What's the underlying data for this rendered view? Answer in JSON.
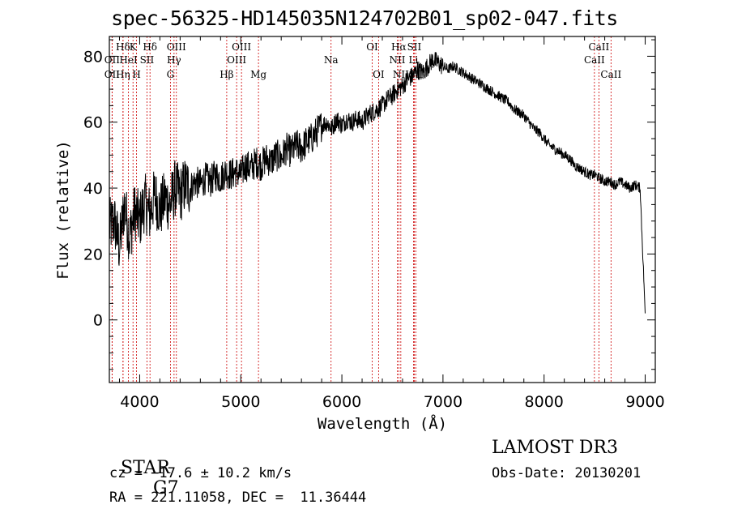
{
  "title": "spec-56325-HD145035N124702B01_sp02-047.fits",
  "colors": {
    "spectrum": "#000000",
    "marker": "#cc0000",
    "axis": "#000000"
  },
  "chart_data": {
    "type": "line",
    "title": "spec-56325-HD145035N124702B01_sp02-047.fits",
    "xlabel": "Wavelength (Å)",
    "ylabel": "Flux (relative)",
    "xlim": [
      3700,
      9100
    ],
    "ylim": [
      -19,
      86
    ],
    "xticks": [
      4000,
      5000,
      6000,
      7000,
      8000,
      9000
    ],
    "yticks": [
      0,
      20,
      40,
      60,
      80
    ],
    "series": [
      {
        "name": "flux",
        "x": [
          3700,
          3750,
          3800,
          3850,
          3900,
          3950,
          4000,
          4050,
          4100,
          4150,
          4200,
          4250,
          4300,
          4350,
          4400,
          4450,
          4500,
          4550,
          4600,
          4650,
          4700,
          4750,
          4800,
          4850,
          4900,
          4950,
          5000,
          5050,
          5100,
          5150,
          5200,
          5250,
          5300,
          5350,
          5400,
          5450,
          5500,
          5550,
          5600,
          5650,
          5700,
          5750,
          5800,
          5850,
          5900,
          5950,
          6000,
          6050,
          6100,
          6150,
          6200,
          6250,
          6300,
          6350,
          6400,
          6450,
          6500,
          6550,
          6600,
          6650,
          6700,
          6750,
          6800,
          6850,
          6900,
          6950,
          7000,
          7050,
          7100,
          7150,
          7200,
          7250,
          7300,
          7350,
          7400,
          7450,
          7500,
          7550,
          7600,
          7650,
          7700,
          7750,
          7800,
          7850,
          7900,
          7950,
          8000,
          8050,
          8100,
          8150,
          8200,
          8250,
          8300,
          8350,
          8400,
          8450,
          8500,
          8550,
          8600,
          8650,
          8700,
          8750,
          8800,
          8850,
          8900,
          8950,
          9000
        ],
        "values": [
          28,
          30,
          22,
          35,
          25,
          33,
          30,
          36,
          32,
          38,
          33,
          37,
          35,
          40,
          38,
          41,
          40,
          42,
          41,
          43,
          42,
          44,
          43,
          45,
          44,
          45,
          44,
          47,
          46,
          48,
          47,
          49,
          48,
          50,
          49,
          52,
          51,
          53,
          52,
          54,
          55,
          57,
          59,
          60,
          58,
          61,
          59,
          61,
          60,
          61,
          60,
          62,
          63,
          64,
          65,
          67,
          68,
          70,
          71,
          73,
          74,
          76,
          75,
          77,
          79,
          78,
          77,
          76,
          77,
          76,
          75,
          74,
          73,
          72,
          71,
          70,
          69,
          68,
          67,
          66,
          64,
          63,
          62,
          60,
          58,
          57,
          55,
          53,
          52,
          51,
          50,
          49,
          47,
          46,
          45,
          44,
          44,
          43,
          42,
          42,
          41,
          42,
          41,
          40,
          41,
          40,
          2
        ]
      }
    ],
    "annotations": [
      {
        "label": "Hδ",
        "x": 3835,
        "row": 1
      },
      {
        "label": "OII",
        "x": 3727,
        "row": 2
      },
      {
        "label": "OII",
        "x": 3727,
        "row": 3
      },
      {
        "label": "K",
        "x": 3934,
        "row": 1
      },
      {
        "label": "HeI",
        "x": 3889,
        "row": 2
      },
      {
        "label": "Hη",
        "x": 3835,
        "row": 3
      },
      {
        "label": "H",
        "x": 3969,
        "row": 3
      },
      {
        "label": "Hδ",
        "x": 4102,
        "row": 1
      },
      {
        "label": "SII",
        "x": 4072,
        "row": 2
      },
      {
        "label": "OIII",
        "x": 4363,
        "row": 1
      },
      {
        "label": "Hγ",
        "x": 4340,
        "row": 2
      },
      {
        "label": "G",
        "x": 4304,
        "row": 3
      },
      {
        "label": "OIII",
        "x": 5007,
        "row": 1
      },
      {
        "label": "OIII",
        "x": 4959,
        "row": 2
      },
      {
        "label": "Hβ",
        "x": 4861,
        "row": 3
      },
      {
        "label": "Mg",
        "x": 5175,
        "row": 3
      },
      {
        "label": "Na",
        "x": 5893,
        "row": 2
      },
      {
        "label": "OI",
        "x": 6300,
        "row": 1
      },
      {
        "label": "OI",
        "x": 6363,
        "row": 3
      },
      {
        "label": "Hα",
        "x": 6563,
        "row": 1
      },
      {
        "label": "SII",
        "x": 6716,
        "row": 1
      },
      {
        "label": "NII",
        "x": 6548,
        "row": 2
      },
      {
        "label": "Li",
        "x": 6708,
        "row": 2
      },
      {
        "label": "NII",
        "x": 6583,
        "row": 3
      },
      {
        "label": "SII",
        "x": 6731,
        "row": 3
      },
      {
        "label": "CaII",
        "x": 8542,
        "row": 1
      },
      {
        "label": "CaII",
        "x": 8498,
        "row": 2
      },
      {
        "label": "CaII",
        "x": 8662,
        "row": 3
      }
    ]
  },
  "info": {
    "class": "STAR",
    "subclass": "G7",
    "cz": "cz = −17.6 ± 10.2 km/s",
    "coords": "RA = 221.11058, DEC =  11.36444",
    "survey": "LAMOST DR3",
    "obs_date": "Obs-Date: 20130201"
  }
}
